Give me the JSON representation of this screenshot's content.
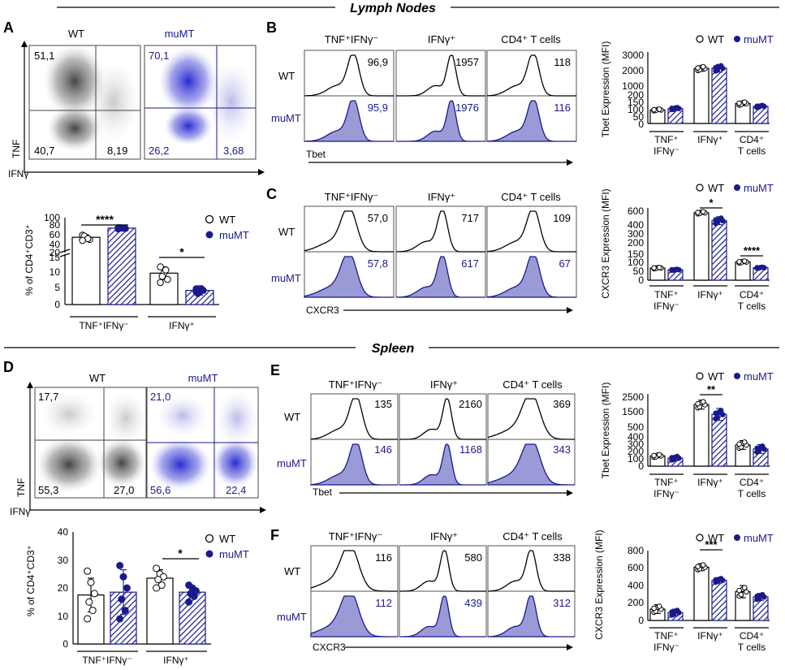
{
  "sections": {
    "lymph_nodes": "Lymph Nodes",
    "spleen": "Spleen"
  },
  "colors": {
    "wt": "#000000",
    "mumt": "#1a1a8c",
    "mumt_fill": "#9a9ad6",
    "grid_line": "#1a1a8c"
  },
  "legend": {
    "wt": "WT",
    "mumt": "muMT"
  },
  "sample_labels": {
    "wt": "WT",
    "mumt": "muMT"
  },
  "hist_titles": {
    "tnf": "TNF⁺IFNγ⁻",
    "ifng": "IFNγ⁺",
    "cd4": "CD4⁺ T cells"
  },
  "panels": {
    "A": {
      "letter": "A",
      "flow": {
        "xlabel": "IFNγ",
        "ylabel": "TNF",
        "wt": {
          "title": "WT",
          "q_tl": "51,1",
          "q_bl": "40,7",
          "q_br": "8,19"
        },
        "mumt": {
          "title": "muMT",
          "q_tl": "70,1",
          "q_bl": "26,2",
          "q_br": "3,68"
        }
      },
      "bar": {
        "ylabel": "% of CD4⁺CD3⁺",
        "upper_ticks": [
          "100",
          "80",
          "60",
          "40",
          "20"
        ],
        "lower_ticks": [
          "15",
          "10",
          "5",
          "0"
        ],
        "group_labels": [
          "TNF⁺IFNγ⁻",
          "IFNγ⁺"
        ],
        "significance": [
          "****",
          "*"
        ]
      }
    },
    "B": {
      "letter": "B",
      "marker": "Tbet",
      "values_wt": [
        "96,9",
        "1957",
        "118"
      ],
      "values_mumt": [
        "95,9",
        "1976",
        "116"
      ],
      "bar": {
        "ylabel": "Tbet Expression (MFI)",
        "upper_ticks": [
          "3000",
          "2000",
          "1000"
        ],
        "lower_ticks": [
          "200",
          "150",
          "100",
          "50",
          "0"
        ],
        "significance": [
          "",
          "",
          ""
        ]
      }
    },
    "C": {
      "letter": "C",
      "marker": "CXCR3",
      "values_wt": [
        "57,0",
        "717",
        "109"
      ],
      "values_mumt": [
        "57,8",
        "617",
        "67"
      ],
      "bar": {
        "ylabel": "CXCR3 Expression (MFI)",
        "upper_ticks": [
          "600",
          "400",
          "300",
          "200"
        ],
        "lower_ticks": [
          "150",
          "100",
          "50",
          "0"
        ],
        "significance": [
          "",
          "*",
          "****"
        ]
      }
    },
    "D": {
      "letter": "D",
      "flow": {
        "xlabel": "IFNγ",
        "ylabel": "TNF",
        "wt": {
          "title": "WT",
          "q_tl": "17,7",
          "q_bl": "55,3",
          "q_br": "27,0"
        },
        "mumt": {
          "title": "muMT",
          "q_tl": "21,0",
          "q_bl": "56,6",
          "q_br": "22,4"
        }
      },
      "bar": {
        "ylabel": "% of CD4⁺CD3⁺",
        "ticks": [
          "40",
          "30",
          "20",
          "10",
          "0"
        ],
        "group_labels": [
          "TNF⁺IFNγ⁻",
          "IFNγ⁺"
        ],
        "significance": [
          "",
          "*"
        ]
      }
    },
    "E": {
      "letter": "E",
      "marker": "Tbet",
      "values_wt": [
        "135",
        "2160",
        "369"
      ],
      "values_mumt": [
        "146",
        "1168",
        "343"
      ],
      "bar": {
        "ylabel": "Tbet Expression (MFI)",
        "upper_ticks": [
          "2500",
          "1500",
          "500"
        ],
        "lower_ticks": [
          "400",
          "300",
          "200",
          "100",
          "0"
        ],
        "significance": [
          "",
          "**",
          ""
        ]
      }
    },
    "F": {
      "letter": "F",
      "marker": "CXCR3",
      "values_wt": [
        "116",
        "580",
        "338"
      ],
      "values_mumt": [
        "112",
        "439",
        "312"
      ],
      "bar": {
        "ylabel": "CXCR3 Expression (MFI)",
        "ticks": [
          "800",
          "600",
          "400",
          "200",
          "0"
        ],
        "significance": [
          "",
          "***",
          ""
        ]
      }
    }
  },
  "mfi_group_labels": {
    "g1a": "TNF⁺",
    "g1b": "IFNγ⁻",
    "g2": "IFNγ⁺",
    "g3a": "CD4⁺",
    "g3b": "T cells"
  },
  "chart_data": [
    {
      "id": "A-bar",
      "type": "bar",
      "title": "",
      "ylabel": "% of CD4+CD3+",
      "categories": [
        "TNF+IFNγ-",
        "IFNγ+"
      ],
      "ylim": [
        0,
        100
      ],
      "axis_break": [
        15,
        20
      ],
      "series": [
        {
          "name": "WT",
          "values": [
            55,
            10
          ],
          "errors": [
            5,
            2
          ],
          "points": [
            [
              60,
              55,
              50,
              58,
              52,
              48
            ],
            [
              12,
              10,
              8,
              9,
              11,
              7
            ]
          ]
        },
        {
          "name": "muMT",
          "values": [
            76,
            4.5
          ],
          "errors": [
            2,
            1.5
          ],
          "points": [
            [
              77,
              76,
              75,
              77,
              76,
              74
            ],
            [
              5,
              4,
              4.5,
              3.5,
              5,
              4
            ]
          ]
        }
      ],
      "significance": [
        {
          "category": "TNF+IFNγ-",
          "label": "****"
        },
        {
          "category": "IFNγ+",
          "label": "*"
        }
      ]
    },
    {
      "id": "B-bar",
      "type": "bar",
      "ylabel": "Tbet Expression (MFI)",
      "categories": [
        "TNF+IFNγ-",
        "IFNγ+",
        "CD4+ T cells"
      ],
      "ylim": [
        0,
        3000
      ],
      "axis_break": [
        200,
        300
      ],
      "series": [
        {
          "name": "WT",
          "values": [
            95,
            1950,
            140
          ],
          "errors": [
            8,
            220,
            15
          ]
        },
        {
          "name": "muMT",
          "values": [
            105,
            1970,
            120
          ],
          "errors": [
            10,
            300,
            10
          ]
        }
      ],
      "significance": []
    },
    {
      "id": "C-bar",
      "type": "bar",
      "ylabel": "CXCR3 Expression (MFI)",
      "categories": [
        "TNF+IFNγ-",
        "IFNγ+",
        "CD4+ T cells"
      ],
      "ylim": [
        0,
        600
      ],
      "axis_break": [
        150,
        200
      ],
      "series": [
        {
          "name": "WT",
          "values": [
            70,
            580,
            105
          ],
          "errors": [
            5,
            20,
            8
          ]
        },
        {
          "name": "muMT",
          "values": [
            60,
            480,
            72
          ],
          "errors": [
            4,
            50,
            4
          ]
        }
      ],
      "significance": [
        {
          "category": "IFNγ+",
          "label": "*"
        },
        {
          "category": "CD4+ T cells",
          "label": "****"
        }
      ]
    },
    {
      "id": "D-bar",
      "type": "bar",
      "ylabel": "% of CD4+CD3+",
      "categories": [
        "TNF+IFNγ-",
        "IFNγ+"
      ],
      "ylim": [
        0,
        40
      ],
      "series": [
        {
          "name": "WT",
          "values": [
            17.5,
            23.5
          ],
          "errors": [
            6,
            3
          ],
          "points": [
            [
              26,
              22,
              18,
              15,
              12,
              9
            ],
            [
              27,
              25,
              24,
              23,
              21,
              20
            ]
          ]
        },
        {
          "name": "muMT",
          "values": [
            18.5,
            18.5
          ],
          "errors": [
            8,
            2
          ],
          "points": [
            [
              28,
              24,
              20,
              16,
              12,
              9
            ],
            [
              21,
              20,
              19,
              18,
              17,
              15
            ]
          ]
        }
      ],
      "significance": [
        {
          "category": "IFNγ+",
          "label": "*"
        }
      ]
    },
    {
      "id": "E-bar",
      "type": "bar",
      "ylabel": "Tbet Expression (MFI)",
      "categories": [
        "TNF+IFNγ-",
        "IFNγ+",
        "CD4+ T cells"
      ],
      "ylim": [
        0,
        2500
      ],
      "axis_break": [
        400,
        500
      ],
      "series": [
        {
          "name": "WT",
          "values": [
            140,
            2000,
            290
          ],
          "errors": [
            25,
            300,
            60
          ]
        },
        {
          "name": "muMT",
          "values": [
            110,
            1350,
            235
          ],
          "errors": [
            35,
            400,
            60
          ]
        }
      ],
      "significance": [
        {
          "category": "IFNγ+",
          "label": "**"
        }
      ]
    },
    {
      "id": "F-bar",
      "type": "bar",
      "ylabel": "CXCR3 Expression (MFI)",
      "categories": [
        "TNF+IFNγ-",
        "IFNγ+",
        "CD4+ T cells"
      ],
      "ylim": [
        0,
        800
      ],
      "series": [
        {
          "name": "WT",
          "values": [
            130,
            610,
            330
          ],
          "errors": [
            50,
            40,
            70
          ]
        },
        {
          "name": "muMT",
          "values": [
            90,
            460,
            270
          ],
          "errors": [
            40,
            30,
            40
          ]
        }
      ],
      "significance": [
        {
          "category": "IFNγ+",
          "label": "***"
        }
      ]
    }
  ]
}
